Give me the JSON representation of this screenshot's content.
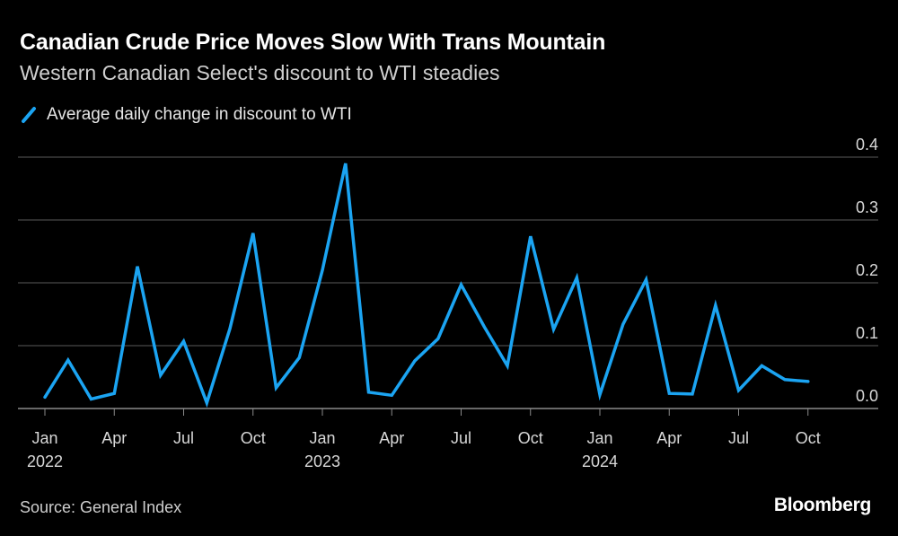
{
  "title": "Canadian Crude Price Moves Slow With Trans Mountain",
  "subtitle": "Western Canadian Select's discount to WTI steadies",
  "source": "Source: General Index",
  "brand": "Bloomberg",
  "colors": {
    "background": "#000000",
    "line": "#1ba4f2",
    "grid": "#5a5a5a",
    "text": "#d8d8d8"
  },
  "chart_data": {
    "type": "line",
    "title": "Canadian Crude Price Moves Slow With Trans Mountain",
    "subtitle": "Western Canadian Select's discount to WTI steadies",
    "ylim": [
      0,
      0.4
    ],
    "yticks": [
      "0.4",
      "0.3",
      "0.2",
      "0.1",
      "0.0"
    ],
    "ytick_values": [
      0.4,
      0.3,
      0.2,
      0.1,
      0.0
    ],
    "y_axis_side": "right",
    "grid": true,
    "legend_position": "top-left",
    "xtick_labels": [
      {
        "month": "Jan",
        "year": "2022",
        "index": 0
      },
      {
        "month": "Apr",
        "year": "",
        "index": 3
      },
      {
        "month": "Jul",
        "year": "",
        "index": 6
      },
      {
        "month": "Oct",
        "year": "",
        "index": 9
      },
      {
        "month": "Jan",
        "year": "2023",
        "index": 12
      },
      {
        "month": "Apr",
        "year": "",
        "index": 15
      },
      {
        "month": "Jul",
        "year": "",
        "index": 18
      },
      {
        "month": "Oct",
        "year": "",
        "index": 21
      },
      {
        "month": "Jan",
        "year": "2024",
        "index": 24
      },
      {
        "month": "Apr",
        "year": "",
        "index": 27
      },
      {
        "month": "Jul",
        "year": "",
        "index": 30
      },
      {
        "month": "Oct",
        "year": "",
        "index": 33
      }
    ],
    "series": [
      {
        "name": "Average daily change in discount to WTI",
        "x": [
          "2022-01",
          "2022-02",
          "2022-03",
          "2022-04",
          "2022-05",
          "2022-06",
          "2022-07",
          "2022-08",
          "2022-09",
          "2022-10",
          "2022-11",
          "2022-12",
          "2023-01",
          "2023-02",
          "2023-03",
          "2023-04",
          "2023-05",
          "2023-06",
          "2023-07",
          "2023-08",
          "2023-09",
          "2023-10",
          "2023-11",
          "2023-12",
          "2024-01",
          "2024-02",
          "2024-03",
          "2024-04",
          "2024-05",
          "2024-06",
          "2024-07",
          "2024-08",
          "2024-09",
          "2024-10"
        ],
        "values": [
          0.018,
          0.077,
          0.015,
          0.024,
          0.226,
          0.053,
          0.107,
          0.009,
          0.127,
          0.279,
          0.033,
          0.081,
          0.22,
          0.39,
          0.026,
          0.021,
          0.076,
          0.111,
          0.197,
          0.13,
          0.068,
          0.274,
          0.126,
          0.208,
          0.022,
          0.134,
          0.205,
          0.024,
          0.023,
          0.164,
          0.029,
          0.068,
          0.046,
          0.043
        ]
      }
    ]
  }
}
